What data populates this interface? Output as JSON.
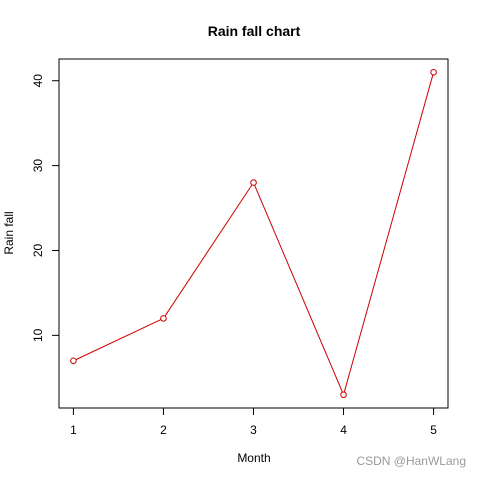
{
  "chart_data": {
    "type": "line",
    "title": "Rain fall chart",
    "xlabel": "Month",
    "ylabel": "Rain fall",
    "x": [
      1,
      2,
      3,
      4,
      5
    ],
    "series": [
      {
        "values": [
          7,
          12,
          28,
          3,
          41
        ],
        "color": "#cc0000",
        "markers": "open-circle"
      }
    ],
    "xticks": [
      1,
      2,
      3,
      4,
      5
    ],
    "yticks": [
      10,
      20,
      30,
      40
    ],
    "xlim": [
      0.84,
      5.16
    ],
    "ylim": [
      1.44,
      42.56
    ],
    "grid": false,
    "legend": "none"
  },
  "watermark": "CSDN @HanWLang"
}
